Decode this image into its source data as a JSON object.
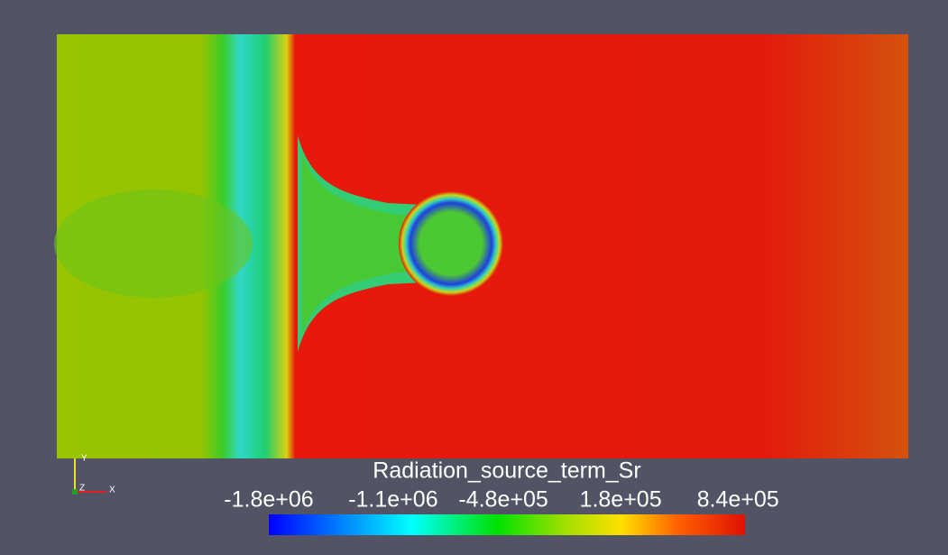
{
  "legend": {
    "title": "Radiation_source_term_Sr",
    "range": [
      -1800000,
      880000
    ],
    "ticks": [
      {
        "value": -1800000,
        "label": "-1.8e+06"
      },
      {
        "value": -1100000,
        "label": "-1.1e+06"
      },
      {
        "value": -480000,
        "label": "-4.8e+05"
      },
      {
        "value": 180000,
        "label": "1.8e+05"
      },
      {
        "value": 840000,
        "label": "8.4e+05"
      }
    ]
  },
  "axes": {
    "x": "X",
    "y": "Y",
    "z": "Z"
  }
}
